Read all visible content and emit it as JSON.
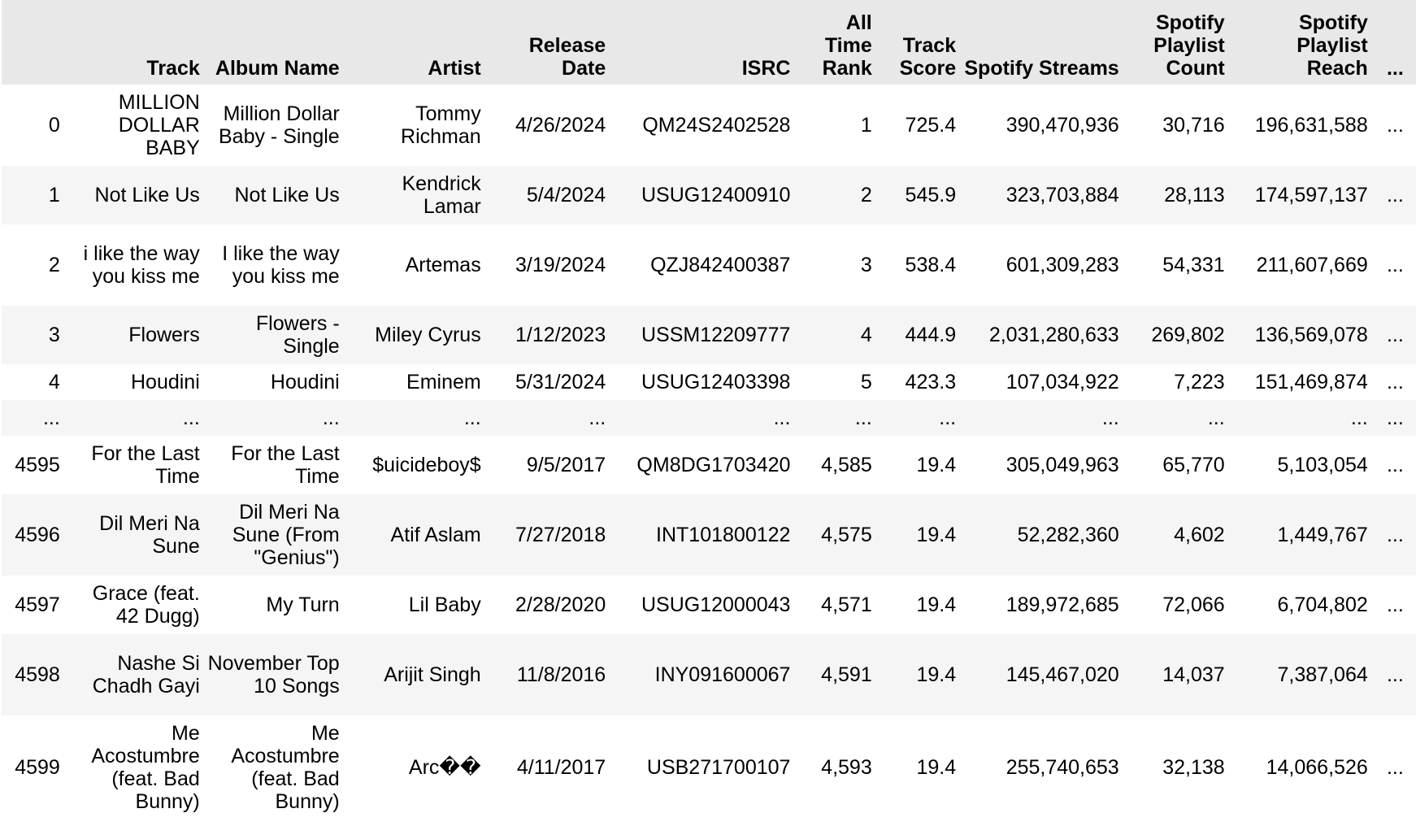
{
  "columns": [
    {
      "key": "index",
      "label": ""
    },
    {
      "key": "track",
      "label": "Track"
    },
    {
      "key": "album",
      "label": "Album Name"
    },
    {
      "key": "artist",
      "label": "Artist"
    },
    {
      "key": "release",
      "label": "Release Date"
    },
    {
      "key": "isrc",
      "label": "ISRC"
    },
    {
      "key": "rank",
      "label": "All Time Rank"
    },
    {
      "key": "score",
      "label": "Track Score"
    },
    {
      "key": "streams",
      "label": "Spotify Streams"
    },
    {
      "key": "plcount",
      "label": "Spotify Playlist Count"
    },
    {
      "key": "plreach",
      "label": "Spotify Playlist Reach"
    },
    {
      "key": "more",
      "label": "..."
    }
  ],
  "rows": [
    {
      "index": "0",
      "track": "MILLION DOLLAR BABY",
      "album": "Million Dollar Baby - Single",
      "artist": "Tommy Richman",
      "release": "4/26/2024",
      "isrc": "QM24S2402528",
      "rank": "1",
      "score": "725.4",
      "streams": "390,470,936",
      "plcount": "30,716",
      "plreach": "196,631,588",
      "more": "..."
    },
    {
      "index": "1",
      "track": "Not Like Us",
      "album": "Not Like Us",
      "artist": "Kendrick Lamar",
      "release": "5/4/2024",
      "isrc": "USUG12400910",
      "rank": "2",
      "score": "545.9",
      "streams": "323,703,884",
      "plcount": "28,113",
      "plreach": "174,597,137",
      "more": "..."
    },
    {
      "index": "2",
      "track": "i like the way you kiss me",
      "album": "I like the way you kiss me",
      "artist": "Artemas",
      "release": "3/19/2024",
      "isrc": "QZJ842400387",
      "rank": "3",
      "score": "538.4",
      "streams": "601,309,283",
      "plcount": "54,331",
      "plreach": "211,607,669",
      "more": "..."
    },
    {
      "index": "3",
      "track": "Flowers",
      "album": "Flowers - Single",
      "artist": "Miley Cyrus",
      "release": "1/12/2023",
      "isrc": "USSM12209777",
      "rank": "4",
      "score": "444.9",
      "streams": "2,031,280,633",
      "plcount": "269,802",
      "plreach": "136,569,078",
      "more": "..."
    },
    {
      "index": "4",
      "track": "Houdini",
      "album": "Houdini",
      "artist": "Eminem",
      "release": "5/31/2024",
      "isrc": "USUG12403398",
      "rank": "5",
      "score": "423.3",
      "streams": "107,034,922",
      "plcount": "7,223",
      "plreach": "151,469,874",
      "more": "..."
    },
    {
      "index": "...",
      "track": "...",
      "album": "...",
      "artist": "...",
      "release": "...",
      "isrc": "...",
      "rank": "...",
      "score": "...",
      "streams": "...",
      "plcount": "...",
      "plreach": "...",
      "more": "..."
    },
    {
      "index": "4595",
      "track": "For the Last Time",
      "album": "For the Last Time",
      "artist": "$uicideboy$",
      "release": "9/5/2017",
      "isrc": "QM8DG1703420",
      "rank": "4,585",
      "score": "19.4",
      "streams": "305,049,963",
      "plcount": "65,770",
      "plreach": "5,103,054",
      "more": "..."
    },
    {
      "index": "4596",
      "track": "Dil Meri Na Sune",
      "album": "Dil Meri Na Sune (From \"Genius\")",
      "artist": "Atif Aslam",
      "release": "7/27/2018",
      "isrc": "INT101800122",
      "rank": "4,575",
      "score": "19.4",
      "streams": "52,282,360",
      "plcount": "4,602",
      "plreach": "1,449,767",
      "more": "..."
    },
    {
      "index": "4597",
      "track": "Grace (feat. 42 Dugg)",
      "album": "My Turn",
      "artist": "Lil Baby",
      "release": "2/28/2020",
      "isrc": "USUG12000043",
      "rank": "4,571",
      "score": "19.4",
      "streams": "189,972,685",
      "plcount": "72,066",
      "plreach": "6,704,802",
      "more": "..."
    },
    {
      "index": "4598",
      "track": "Nashe Si Chadh Gayi",
      "album": "November Top 10 Songs",
      "artist": "Arijit Singh",
      "release": "11/8/2016",
      "isrc": "INY091600067",
      "rank": "4,591",
      "score": "19.4",
      "streams": "145,467,020",
      "plcount": "14,037",
      "plreach": "7,387,064",
      "more": "..."
    },
    {
      "index": "4599",
      "track": "Me Acostumbre (feat. Bad Bunny)",
      "album": "Me Acostumbre (feat. Bad Bunny)",
      "artist": "Arc��",
      "release": "4/11/2017",
      "isrc": "USB271700107",
      "rank": "4,593",
      "score": "19.4",
      "streams": "255,740,653",
      "plcount": "32,138",
      "plreach": "14,066,526",
      "more": "..."
    }
  ]
}
